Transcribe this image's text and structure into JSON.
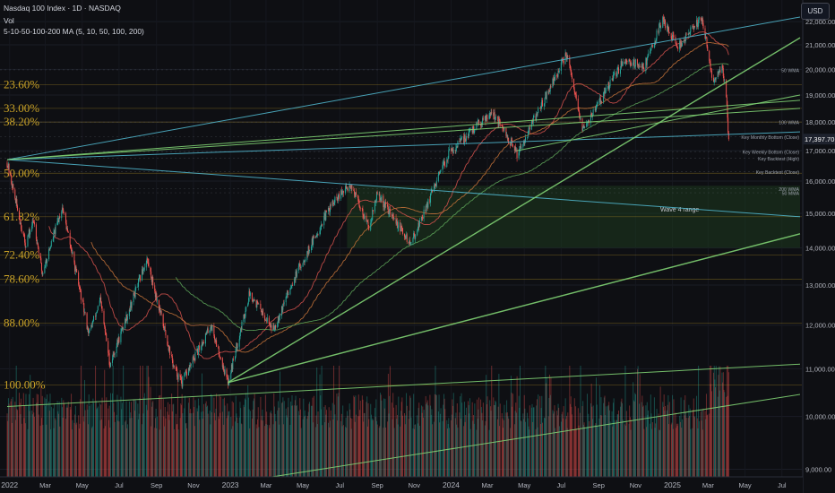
{
  "header": {
    "title": "Nasdaq 100 Index · 1D · NASDAQ",
    "vol": "Vol",
    "ma": "5-10-50-100-200 MA (5, 10, 50, 100, 200)"
  },
  "currency_button": "USD",
  "colors": {
    "background": "#0e0f13",
    "up": "#26a69a",
    "down": "#ef5350",
    "fib": "#c9a227",
    "green_line": "#7fd173",
    "blue_line": "#4fb3c9",
    "ma_red": "#d9534f",
    "ma_orange": "#c8743a",
    "ma_green": "#5fa85a",
    "zone": "#1d3a1f"
  },
  "chart_data": {
    "type": "candlestick",
    "symbol": "Nasdaq 100 Index",
    "interval": "1D",
    "exchange": "NASDAQ",
    "x_tick_labels": [
      "2022",
      "Mar",
      "May",
      "Jul",
      "Sep",
      "Nov",
      "2023",
      "Mar",
      "May",
      "Jul",
      "Sep",
      "Nov",
      "2024",
      "Mar",
      "May",
      "Jul",
      "Sep",
      "Nov",
      "2025",
      "Mar",
      "May",
      "Jul"
    ],
    "x_tick_dates": [
      "2022-01-01",
      "2022-03-01",
      "2022-05-01",
      "2022-07-01",
      "2022-09-01",
      "2022-11-01",
      "2023-01-01",
      "2023-03-01",
      "2023-05-01",
      "2023-07-01",
      "2023-09-01",
      "2023-11-01",
      "2024-01-01",
      "2024-03-01",
      "2024-05-01",
      "2024-07-01",
      "2024-09-01",
      "2024-11-01",
      "2025-01-01",
      "2025-03-01",
      "2025-05-01",
      "2025-07-01"
    ],
    "y_ticks": [
      9000,
      10000,
      11000,
      12000,
      13000,
      14000,
      15000,
      16000,
      17000,
      18000,
      19000,
      20000,
      21000,
      22000
    ],
    "y_tick_labels": [
      "9,000.00",
      "10,000.00",
      "11,000.00",
      "12,000.00",
      "13,000.00",
      "14,000.00",
      "15,000.00",
      "16,000.00",
      "17,000.00",
      "18,000.00",
      "19,000.00",
      "20,000.00",
      "21,000.00",
      "22,000.00"
    ],
    "y_scale": "log",
    "ylim": [
      8800,
      22400
    ],
    "last_price": 17397.7,
    "last_price_label": "17,397.70",
    "price_path": [
      [
        "2021-12-28",
        16600
      ],
      [
        "2022-01-27",
        14100
      ],
      [
        "2022-02-10",
        14800
      ],
      [
        "2022-02-24",
        13300
      ],
      [
        "2022-03-29",
        15200
      ],
      [
        "2022-05-12",
        11800
      ],
      [
        "2022-05-31",
        12600
      ],
      [
        "2022-06-16",
        11100
      ],
      [
        "2022-08-16",
        13700
      ],
      [
        "2022-09-30",
        11000
      ],
      [
        "2022-10-13",
        10700
      ],
      [
        "2022-11-30",
        12000
      ],
      [
        "2022-12-28",
        10700
      ],
      [
        "2023-02-02",
        12800
      ],
      [
        "2023-03-13",
        11900
      ],
      [
        "2023-04-14",
        13100
      ],
      [
        "2023-06-15",
        15200
      ],
      [
        "2023-07-19",
        15900
      ],
      [
        "2023-08-18",
        14600
      ],
      [
        "2023-09-01",
        15600
      ],
      [
        "2023-10-26",
        14100
      ],
      [
        "2023-12-28",
        16900
      ],
      [
        "2024-03-08",
        18400
      ],
      [
        "2024-04-19",
        16900
      ],
      [
        "2024-07-10",
        20600
      ],
      [
        "2024-08-05",
        17700
      ],
      [
        "2024-10-14",
        20400
      ],
      [
        "2024-11-15",
        20100
      ],
      [
        "2024-12-16",
        22100
      ],
      [
        "2025-01-10",
        20900
      ],
      [
        "2025-02-19",
        22200
      ],
      [
        "2025-03-10",
        19400
      ],
      [
        "2025-03-24",
        20200
      ],
      [
        "2025-03-31",
        18900
      ],
      [
        "2025-04-04",
        17397.7
      ]
    ],
    "volume_axis": "unlabeled",
    "fib_levels": [
      {
        "label": "23.60%",
        "price": 19390
      },
      {
        "label": "33.00%",
        "price": 18500
      },
      {
        "label": "38.20%",
        "price": 18000
      },
      {
        "label": "50.00%",
        "price": 16250
      },
      {
        "label": "61.82%",
        "price": 14900
      },
      {
        "label": "72.40%",
        "price": 13800
      },
      {
        "label": "78.60%",
        "price": 13150
      },
      {
        "label": "88.00%",
        "price": 12050
      },
      {
        "label": "100.00%",
        "price": 10650
      }
    ],
    "key_levels": [
      {
        "label": "50 WMA",
        "price": 19980
      },
      {
        "label": "100 WMA",
        "price": 18000
      },
      {
        "label": "Key Monthly Bottom (Close)",
        "price": 17480
      },
      {
        "label": "Key Weekly Bottom (Close)",
        "price": 16970
      },
      {
        "label": "Key Backtest (High)",
        "price": 16750
      },
      {
        "label": "Key Backtest (Close)",
        "price": 16300
      },
      {
        "label": "200 WMA",
        "price": 15760
      },
      {
        "label": "50 MMA",
        "price": 15630
      }
    ],
    "zone": {
      "label": "Wave 4 range",
      "from_date": "2023-07-13",
      "to_date": "2025-07-31",
      "low": 14000,
      "high": 15850
    },
    "trend_lines": [
      {
        "color": "blue",
        "from": [
          "2021-12-28",
          16700
        ],
        "to": [
          "2025-07-31",
          22200
        ]
      },
      {
        "color": "blue",
        "from": [
          "2021-12-28",
          16700
        ],
        "to": [
          "2025-07-31",
          17650
        ]
      },
      {
        "color": "blue",
        "from": [
          "2021-12-28",
          16700
        ],
        "to": [
          "2025-07-31",
          14900
        ]
      },
      {
        "color": "green",
        "from": [
          "2021-12-28",
          16700
        ],
        "to": [
          "2025-07-31",
          18800
        ]
      },
      {
        "color": "green",
        "from": [
          "2021-12-28",
          16700
        ],
        "to": [
          "2025-07-31",
          18500
        ]
      },
      {
        "color": "green",
        "from": [
          "2022-12-28",
          10700
        ],
        "to": [
          "2025-07-31",
          21300
        ]
      },
      {
        "color": "green",
        "from": [
          "2022-12-28",
          10700
        ],
        "to": [
          "2025-07-31",
          14400
        ]
      },
      {
        "color": "green",
        "from": [
          "2024-04-19",
          17000
        ],
        "to": [
          "2025-07-31",
          19000
        ]
      },
      {
        "color": "green",
        "from": [
          "2021-12-28",
          10200
        ],
        "to": [
          "2025-07-31",
          11100
        ]
      },
      {
        "color": "green",
        "from": [
          "2023-02-01",
          8800
        ],
        "to": [
          "2025-07-31",
          10450
        ]
      }
    ]
  }
}
